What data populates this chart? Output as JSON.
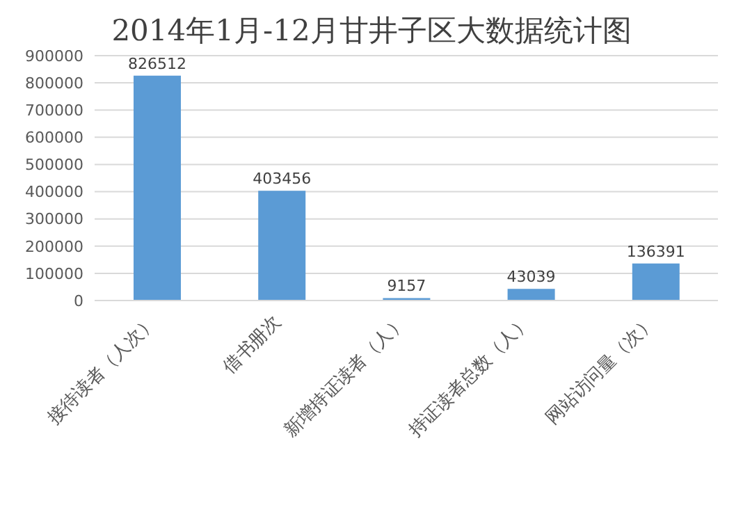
{
  "chart_data": {
    "type": "bar",
    "title": "2014年1月-12月甘井子区大数据统计图",
    "categories": [
      "接待读者（人次）",
      "借书册次",
      "新增持证读者（人）",
      "持证读者总数（人）",
      "网站访问量（次）"
    ],
    "values": [
      826512,
      403456,
      9157,
      43039,
      136391
    ],
    "color": "#5b9bd5",
    "ylim": [
      0,
      900000
    ],
    "yticks": [
      0,
      100000,
      200000,
      300000,
      400000,
      500000,
      600000,
      700000,
      800000,
      900000
    ],
    "grid": "y",
    "data_labels": true
  }
}
